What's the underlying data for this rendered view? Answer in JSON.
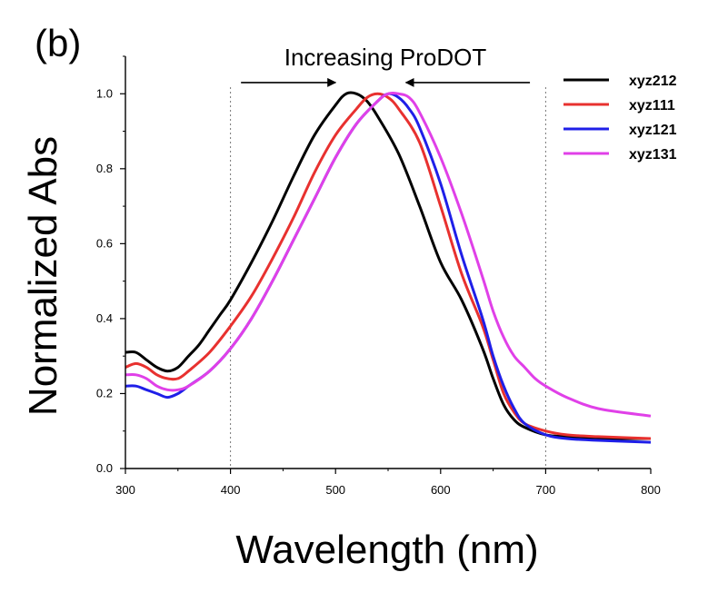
{
  "panel_label": "(b)",
  "annotation": "Increasing ProDOT",
  "chart_data": {
    "type": "line",
    "title": "",
    "xlabel": "Wavelength (nm)",
    "ylabel": "Normalized Abs",
    "xlim": [
      300,
      800
    ],
    "ylim": [
      0.0,
      1.1
    ],
    "xticks": [
      300,
      400,
      500,
      600,
      700,
      800
    ],
    "xtick_labels": [
      "300",
      "400",
      "500",
      "600",
      "700",
      "800"
    ],
    "yticks": [
      0.0,
      0.2,
      0.4,
      0.6,
      0.8,
      1.0
    ],
    "ytick_labels": [
      "0.0",
      "0.2",
      "0.4",
      "0.6",
      "0.8",
      "1.0"
    ],
    "grid": false,
    "legend_position": "top-right",
    "reference_lines_x": [
      400,
      700
    ],
    "arrows": [
      {
        "from": 410,
        "to": 500,
        "y": 1.03
      },
      {
        "from": 685,
        "to": 567,
        "y": 1.03
      }
    ],
    "series": [
      {
        "name": "xyz212",
        "color": "#000000",
        "x": [
          300,
          310,
          320,
          330,
          340,
          350,
          360,
          370,
          380,
          390,
          400,
          420,
          440,
          460,
          480,
          500,
          510,
          520,
          530,
          540,
          560,
          580,
          600,
          620,
          640,
          650,
          660,
          670,
          680,
          700,
          720,
          750,
          800
        ],
        "y": [
          0.31,
          0.31,
          0.29,
          0.27,
          0.26,
          0.27,
          0.3,
          0.33,
          0.37,
          0.41,
          0.45,
          0.55,
          0.66,
          0.78,
          0.89,
          0.97,
          1.0,
          1.0,
          0.98,
          0.94,
          0.84,
          0.7,
          0.55,
          0.45,
          0.32,
          0.24,
          0.17,
          0.13,
          0.11,
          0.09,
          0.085,
          0.08,
          0.08
        ]
      },
      {
        "name": "xyz111",
        "color": "#e8312f",
        "x": [
          300,
          310,
          320,
          330,
          340,
          350,
          360,
          380,
          400,
          420,
          440,
          460,
          480,
          500,
          520,
          530,
          540,
          550,
          560,
          580,
          600,
          620,
          640,
          650,
          660,
          670,
          680,
          700,
          720,
          750,
          800
        ],
        "y": [
          0.27,
          0.28,
          0.27,
          0.25,
          0.24,
          0.24,
          0.26,
          0.31,
          0.38,
          0.46,
          0.56,
          0.67,
          0.79,
          0.89,
          0.96,
          0.99,
          1.0,
          0.99,
          0.96,
          0.87,
          0.7,
          0.52,
          0.38,
          0.29,
          0.2,
          0.15,
          0.12,
          0.1,
          0.09,
          0.085,
          0.08
        ]
      },
      {
        "name": "xyz121",
        "color": "#1f1fe8",
        "x": [
          300,
          310,
          320,
          330,
          340,
          350,
          360,
          380,
          400,
          420,
          440,
          460,
          480,
          500,
          520,
          540,
          550,
          560,
          570,
          580,
          600,
          620,
          640,
          650,
          660,
          670,
          680,
          700,
          720,
          750,
          800
        ],
        "y": [
          0.22,
          0.22,
          0.21,
          0.2,
          0.19,
          0.2,
          0.22,
          0.26,
          0.32,
          0.4,
          0.5,
          0.61,
          0.72,
          0.83,
          0.92,
          0.98,
          1.0,
          0.99,
          0.96,
          0.91,
          0.76,
          0.57,
          0.4,
          0.3,
          0.22,
          0.16,
          0.12,
          0.09,
          0.08,
          0.075,
          0.07
        ]
      },
      {
        "name": "xyz131",
        "color": "#e040e8",
        "x": [
          300,
          310,
          320,
          330,
          340,
          350,
          360,
          380,
          400,
          420,
          440,
          460,
          480,
          500,
          520,
          540,
          550,
          560,
          570,
          580,
          600,
          620,
          640,
          650,
          660,
          670,
          680,
          690,
          700,
          720,
          750,
          800
        ],
        "y": [
          0.25,
          0.25,
          0.24,
          0.22,
          0.21,
          0.21,
          0.22,
          0.26,
          0.32,
          0.4,
          0.5,
          0.61,
          0.72,
          0.83,
          0.92,
          0.98,
          1.0,
          1.0,
          0.99,
          0.95,
          0.83,
          0.68,
          0.51,
          0.42,
          0.35,
          0.3,
          0.27,
          0.24,
          0.22,
          0.19,
          0.16,
          0.14
        ]
      }
    ]
  }
}
